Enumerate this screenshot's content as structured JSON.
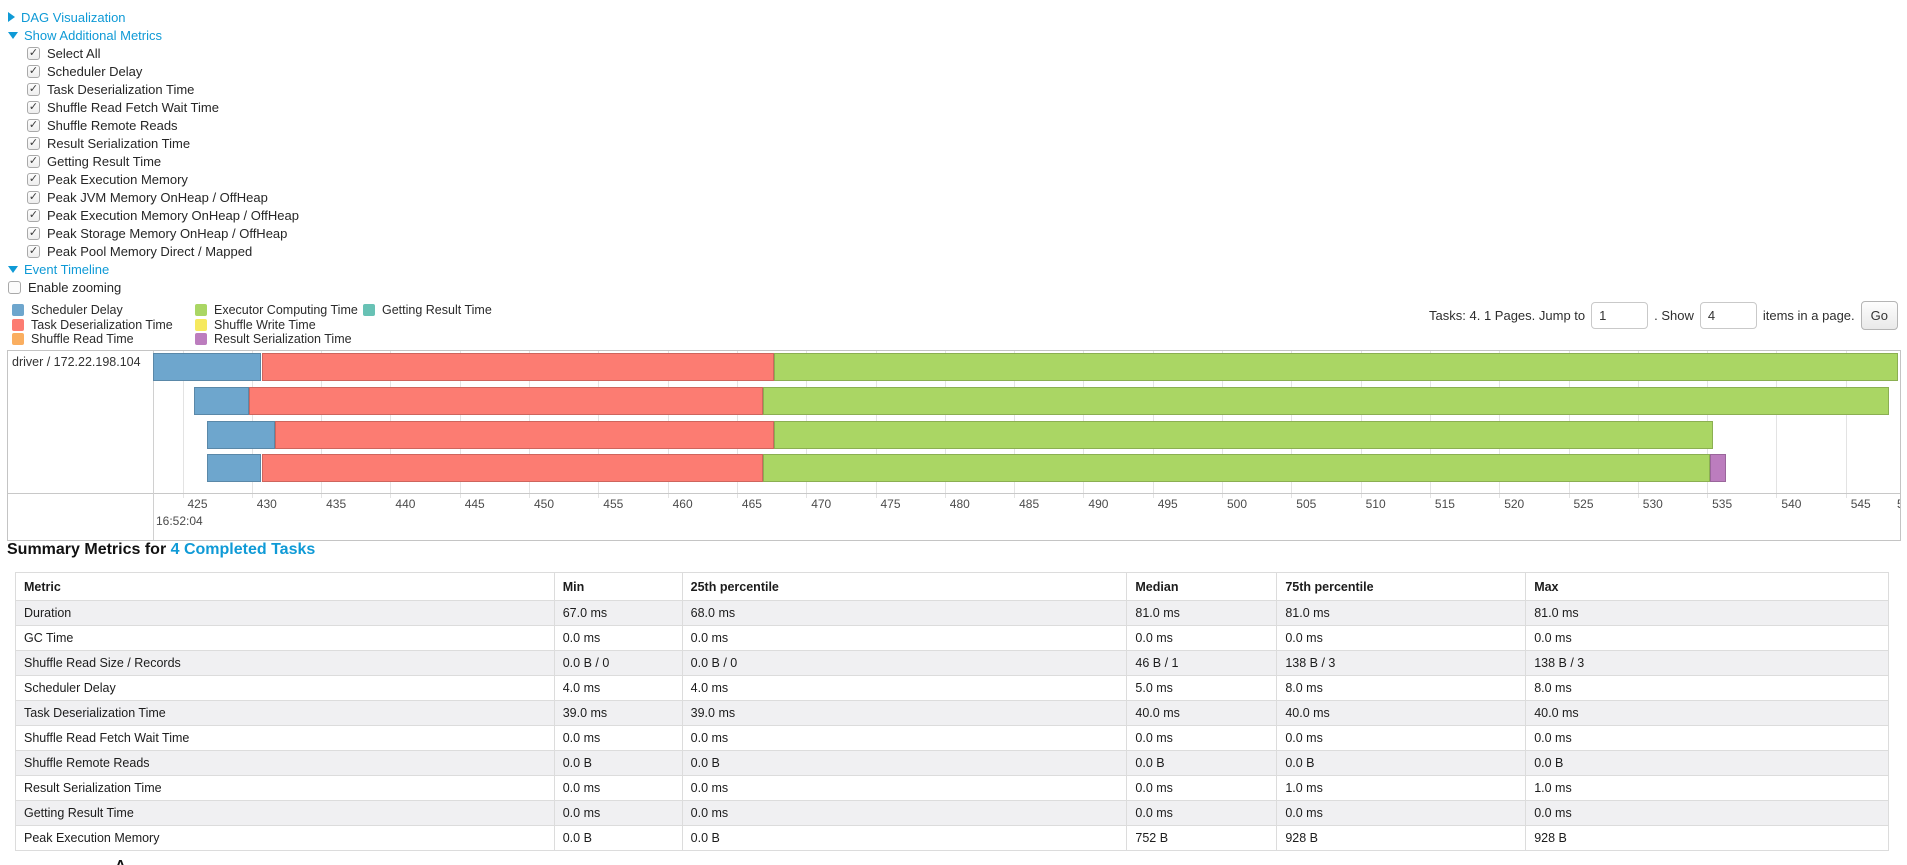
{
  "colors": {
    "link": "#0f9ad6",
    "scheduler_delay": "#6ea6cd",
    "task_deserialization": "#fc7c72",
    "shuffle_read": "#faae60",
    "executor_computing": "#aad664",
    "shuffle_write": "#f6e95e",
    "result_serialization": "#bc7dbe",
    "getting_result": "#68c2b5"
  },
  "sections": {
    "dag": "DAG Visualization",
    "metrics": "Show Additional Metrics",
    "timeline": "Event Timeline"
  },
  "metric_options": [
    "Select All",
    "Scheduler Delay",
    "Task Deserialization Time",
    "Shuffle Read Fetch Wait Time",
    "Shuffle Remote Reads",
    "Result Serialization Time",
    "Getting Result Time",
    "Peak Execution Memory",
    "Peak JVM Memory OnHeap / OffHeap",
    "Peak Execution Memory OnHeap / OffHeap",
    "Peak Storage Memory OnHeap / OffHeap",
    "Peak Pool Memory Direct / Mapped"
  ],
  "enable_zooming_label": "Enable zooming",
  "legend_columns": [
    [
      {
        "key": "scheduler_delay",
        "label": "Scheduler Delay"
      },
      {
        "key": "task_deserialization",
        "label": "Task Deserialization Time"
      },
      {
        "key": "shuffle_read",
        "label": "Shuffle Read Time"
      }
    ],
    [
      {
        "key": "executor_computing",
        "label": "Executor Computing Time"
      },
      {
        "key": "shuffle_write",
        "label": "Shuffle Write Time"
      },
      {
        "key": "result_serialization",
        "label": "Result Serialization Time"
      }
    ],
    [
      {
        "key": "getting_result",
        "label": "Getting Result Time"
      }
    ]
  ],
  "pagination": {
    "prefix": "Tasks: 4. 1 Pages. Jump to",
    "jump_value": "1",
    "show_label": ". Show",
    "show_value": "4",
    "suffix": "items in a page.",
    "go_label": "Go"
  },
  "timeline": {
    "executor": "driver / 172.22.198.104",
    "axis_major": "16:52:04",
    "axis_ticks": [
      "425",
      "430",
      "435",
      "440",
      "445",
      "450",
      "455",
      "460",
      "465",
      "470",
      "475",
      "480",
      "485",
      "490",
      "495",
      "500",
      "505",
      "510",
      "515",
      "520",
      "525",
      "530",
      "535",
      "540",
      "545"
    ],
    "clipped_tick": "5",
    "rows": [
      {
        "segments": [
          {
            "key": "scheduler_delay",
            "start": 422.9,
            "end": 430.7
          },
          {
            "key": "task_deserialization",
            "start": 430.7,
            "end": 467.7
          },
          {
            "key": "executor_computing",
            "start": 467.7,
            "end": 548.8
          }
        ]
      },
      {
        "segments": [
          {
            "key": "scheduler_delay",
            "start": 425.8,
            "end": 429.8
          },
          {
            "key": "task_deserialization",
            "start": 429.8,
            "end": 466.9
          },
          {
            "key": "executor_computing",
            "start": 466.9,
            "end": 548.1
          }
        ]
      },
      {
        "segments": [
          {
            "key": "scheduler_delay",
            "start": 426.8,
            "end": 431.7
          },
          {
            "key": "task_deserialization",
            "start": 431.7,
            "end": 467.7
          },
          {
            "key": "executor_computing",
            "start": 467.7,
            "end": 535.4
          }
        ]
      },
      {
        "segments": [
          {
            "key": "scheduler_delay",
            "start": 426.8,
            "end": 430.7
          },
          {
            "key": "task_deserialization",
            "start": 430.7,
            "end": 466.9
          },
          {
            "key": "executor_computing",
            "start": 466.9,
            "end": 535.2
          },
          {
            "key": "result_serialization",
            "start": 535.2,
            "end": 536.4
          }
        ]
      }
    ]
  },
  "summary": {
    "title_prefix": "Summary Metrics for",
    "title_link": "4 Completed Tasks",
    "columns": [
      "Metric",
      "Min",
      "25th percentile",
      "Median",
      "75th percentile",
      "Max"
    ],
    "rows": [
      {
        "metric": "Duration",
        "values": [
          "67.0 ms",
          "68.0 ms",
          "81.0 ms",
          "81.0 ms",
          "81.0 ms"
        ]
      },
      {
        "metric": "GC Time",
        "values": [
          "0.0 ms",
          "0.0 ms",
          "0.0 ms",
          "0.0 ms",
          "0.0 ms"
        ]
      },
      {
        "metric": "Shuffle Read Size / Records",
        "values": [
          "0.0 B / 0",
          "0.0 B / 0",
          "46 B / 1",
          "138 B / 3",
          "138 B / 3"
        ]
      },
      {
        "metric": "Scheduler Delay",
        "values": [
          "4.0 ms",
          "4.0 ms",
          "5.0 ms",
          "8.0 ms",
          "8.0 ms"
        ]
      },
      {
        "metric": "Task Deserialization Time",
        "values": [
          "39.0 ms",
          "39.0 ms",
          "40.0 ms",
          "40.0 ms",
          "40.0 ms"
        ]
      },
      {
        "metric": "Shuffle Read Fetch Wait Time",
        "values": [
          "0.0 ms",
          "0.0 ms",
          "0.0 ms",
          "0.0 ms",
          "0.0 ms"
        ]
      },
      {
        "metric": "Shuffle Remote Reads",
        "values": [
          "0.0 B",
          "0.0 B",
          "0.0 B",
          "0.0 B",
          "0.0 B"
        ]
      },
      {
        "metric": "Result Serialization Time",
        "values": [
          "0.0 ms",
          "0.0 ms",
          "0.0 ms",
          "1.0 ms",
          "1.0 ms"
        ]
      },
      {
        "metric": "Getting Result Time",
        "values": [
          "0.0 ms",
          "0.0 ms",
          "0.0 ms",
          "0.0 ms",
          "0.0 ms"
        ]
      },
      {
        "metric": "Peak Execution Memory",
        "values": [
          "0.0 B",
          "0.0 B",
          "752 B",
          "928 B",
          "928 B"
        ]
      }
    ]
  }
}
